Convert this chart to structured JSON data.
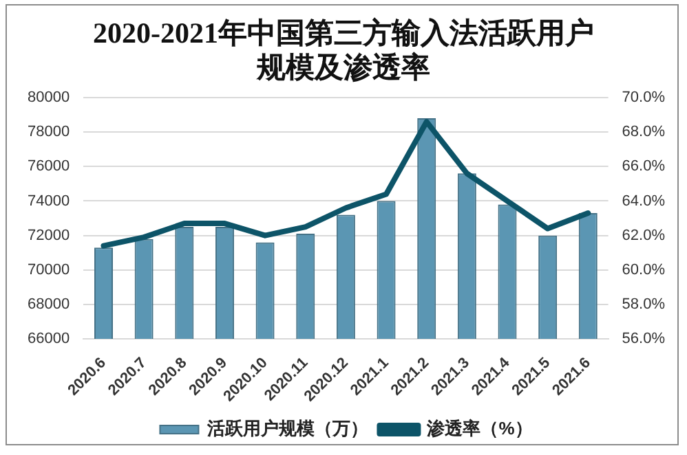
{
  "chart_data": {
    "type": "bar",
    "title": "2020-2021年中国第三方输入法活跃用户规模及渗透率",
    "categories": [
      "2020.6",
      "2020.7",
      "2020.8",
      "2020.9",
      "2020.10",
      "2020.11",
      "2020.12",
      "2021.1",
      "2021.2",
      "2021.3",
      "2021.4",
      "2021.5",
      "2021.6"
    ],
    "series": [
      {
        "name": "活跃用户规模（万）",
        "color": "#5b96b3",
        "values": [
          71300,
          71800,
          72500,
          72500,
          71600,
          72100,
          73200,
          74000,
          78800,
          75600,
          73800,
          72000,
          73300
        ]
      },
      {
        "name": "渗透率（%）",
        "type": "line",
        "axis": "y2",
        "color": "#0d5468",
        "values": [
          61.4,
          61.9,
          62.7,
          62.7,
          62.0,
          62.5,
          63.6,
          64.4,
          68.6,
          65.6,
          64.0,
          62.4,
          63.3
        ]
      }
    ],
    "ylim": [
      66000,
      80000
    ],
    "yticks": [
      66000,
      68000,
      70000,
      72000,
      74000,
      76000,
      78000,
      80000
    ],
    "y2lim": [
      56,
      70
    ],
    "y2ticks": [
      {
        "value": 56,
        "label": "56.0%"
      },
      {
        "value": 58,
        "label": "58.0%"
      },
      {
        "value": 60,
        "label": "60.0%"
      },
      {
        "value": 62,
        "label": "62.0%"
      },
      {
        "value": 64,
        "label": "64.0%"
      },
      {
        "value": 66,
        "label": "66.0%"
      },
      {
        "value": 68,
        "label": "68.0%"
      },
      {
        "value": 70,
        "label": "70.0%"
      }
    ],
    "grid": "y",
    "legend": "bottom",
    "marker": "none",
    "line_style": "solid"
  }
}
